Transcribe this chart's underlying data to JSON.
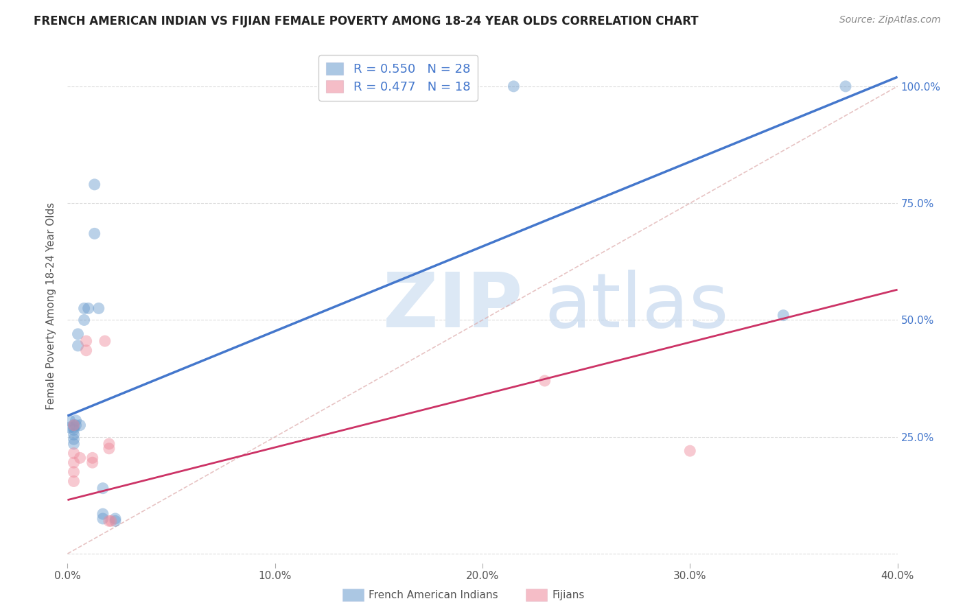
{
  "title": "FRENCH AMERICAN INDIAN VS FIJIAN FEMALE POVERTY AMONG 18-24 YEAR OLDS CORRELATION CHART",
  "source": "Source: ZipAtlas.com",
  "ylabel": "Female Poverty Among 18-24 Year Olds",
  "xlim": [
    0.0,
    0.4
  ],
  "ylim": [
    -0.02,
    1.08
  ],
  "xticks": [
    0.0,
    0.1,
    0.2,
    0.3,
    0.4
  ],
  "xticklabels": [
    "0.0%",
    "10.0%",
    "20.0%",
    "30.0%",
    "40.0%"
  ],
  "yticks": [
    0.0,
    0.25,
    0.5,
    0.75,
    1.0
  ],
  "yticklabels_right": [
    "",
    "25.0%",
    "50.0%",
    "75.0%",
    "100.0%"
  ],
  "blue_R": 0.55,
  "blue_N": 28,
  "pink_R": 0.477,
  "pink_N": 18,
  "blue_color": "#6699cc",
  "pink_color": "#ee8899",
  "blue_label": "French American Indians",
  "pink_label": "Fijians",
  "blue_scatter": [
    [
      0.001,
      0.27
    ],
    [
      0.001,
      0.285
    ],
    [
      0.005,
      0.47
    ],
    [
      0.005,
      0.445
    ],
    [
      0.008,
      0.525
    ],
    [
      0.008,
      0.5
    ],
    [
      0.01,
      0.525
    ],
    [
      0.013,
      0.79
    ],
    [
      0.013,
      0.685
    ],
    [
      0.015,
      0.525
    ],
    [
      0.003,
      0.275
    ],
    [
      0.003,
      0.265
    ],
    [
      0.003,
      0.27
    ],
    [
      0.003,
      0.255
    ],
    [
      0.003,
      0.245
    ],
    [
      0.003,
      0.235
    ],
    [
      0.004,
      0.285
    ],
    [
      0.004,
      0.275
    ],
    [
      0.006,
      0.275
    ],
    [
      0.017,
      0.14
    ],
    [
      0.017,
      0.085
    ],
    [
      0.017,
      0.075
    ],
    [
      0.155,
      1.0
    ],
    [
      0.215,
      1.0
    ],
    [
      0.023,
      0.07
    ],
    [
      0.023,
      0.075
    ],
    [
      0.345,
      0.51
    ],
    [
      0.375,
      1.0
    ]
  ],
  "pink_scatter": [
    [
      0.003,
      0.275
    ],
    [
      0.003,
      0.215
    ],
    [
      0.003,
      0.195
    ],
    [
      0.003,
      0.175
    ],
    [
      0.003,
      0.155
    ],
    [
      0.006,
      0.205
    ],
    [
      0.009,
      0.455
    ],
    [
      0.009,
      0.435
    ],
    [
      0.012,
      0.205
    ],
    [
      0.012,
      0.195
    ],
    [
      0.018,
      0.455
    ],
    [
      0.02,
      0.235
    ],
    [
      0.02,
      0.225
    ],
    [
      0.02,
      0.07
    ],
    [
      0.021,
      0.07
    ],
    [
      0.155,
      1.0
    ],
    [
      0.23,
      0.37
    ],
    [
      0.3,
      0.22
    ]
  ],
  "blue_line": {
    "x0": 0.0,
    "y0": 0.295,
    "x1": 0.4,
    "y1": 1.02
  },
  "pink_line": {
    "x0": 0.0,
    "y0": 0.115,
    "x1": 0.4,
    "y1": 0.565
  },
  "diag_line": {
    "x0": 0.0,
    "y0": 0.0,
    "x1": 0.4,
    "y1": 1.0
  },
  "background_color": "#ffffff",
  "grid_color": "#cccccc"
}
